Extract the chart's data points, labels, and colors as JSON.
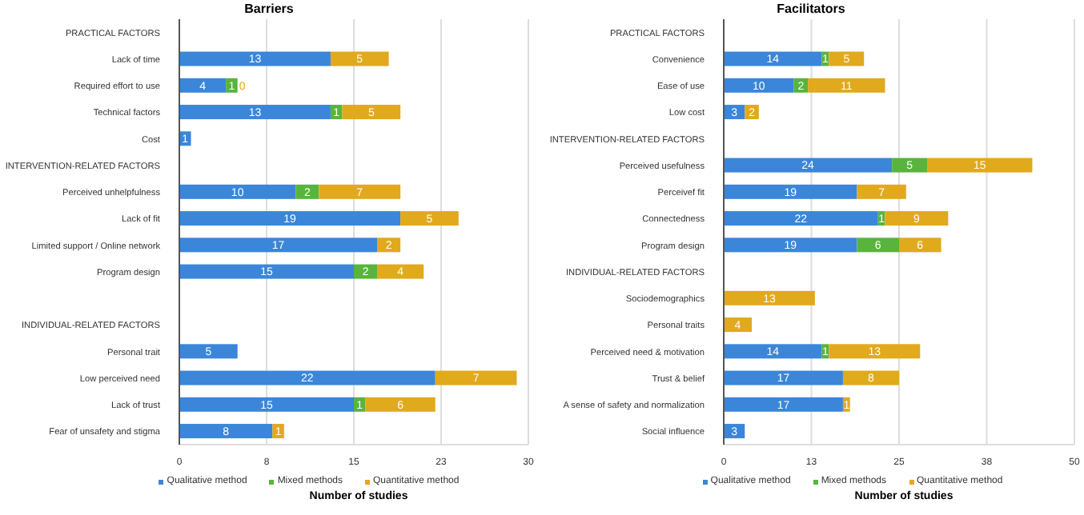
{
  "chart_data": [
    {
      "type": "bar",
      "orientation": "horizontal",
      "stacked": true,
      "title": "Barriers",
      "xlabel": "Number of studies",
      "categories": [
        "PRACTICAL FACTORS",
        "Lack of time",
        "Required effort to use",
        "Technical factors",
        "Cost",
        "INTERVENTION-RELATED FACTORS",
        "Perceived unhelpfulness",
        "Lack of fit",
        "Limited support / Online network",
        "Program design",
        null,
        "INDIVIDUAL-RELATED FACTORS",
        "Personal trait",
        "Low perceived need",
        "Lack of trust",
        "Fear of unsafety and stigma"
      ],
      "series": [
        {
          "name": "Qualitative method",
          "color": "#3b86d8",
          "values": [
            null,
            13,
            4,
            13,
            1,
            null,
            10,
            19,
            17,
            15,
            null,
            null,
            5,
            22,
            15,
            8
          ]
        },
        {
          "name": "Mixed methods",
          "color": "#58b43c",
          "values": [
            null,
            null,
            1,
            1,
            null,
            null,
            2,
            null,
            null,
            2,
            null,
            null,
            null,
            null,
            1,
            null
          ]
        },
        {
          "name": "Quantitative method",
          "color": "#e1a91c",
          "values": [
            null,
            5,
            0,
            5,
            null,
            null,
            7,
            5,
            2,
            4,
            null,
            null,
            null,
            7,
            6,
            1
          ]
        }
      ],
      "xlim": [
        0,
        30
      ],
      "xticks": [
        0,
        {
          "value": 7.5,
          "label": "8"
        },
        15,
        {
          "value": 22.5,
          "label": "23"
        },
        30
      ],
      "grid": "x",
      "legend": "bottom",
      "data_labels": true
    },
    {
      "type": "bar",
      "orientation": "horizontal",
      "stacked": true,
      "title": "Facilitators",
      "xlabel": "Number of studies",
      "categories": [
        "PRACTICAL FACTORS",
        "Convenience",
        "Ease of use",
        "Low cost",
        "INTERVENTION-RELATED FACTORS",
        "Perceived usefulness",
        "Perceivef fit",
        "Connectedness",
        "Program design",
        "INDIVIDUAL-RELATED FACTORS",
        "Sociodemographics",
        "Personal traits",
        "Perceived need & motivation",
        "Trust & belief",
        "A sense of safety and normalization",
        "Social influence"
      ],
      "series": [
        {
          "name": "Qualitative method",
          "color": "#3b86d8",
          "values": [
            null,
            14,
            10,
            3,
            null,
            24,
            19,
            22,
            19,
            null,
            null,
            null,
            14,
            17,
            17,
            3
          ]
        },
        {
          "name": "Mixed methods",
          "color": "#58b43c",
          "values": [
            null,
            1,
            2,
            null,
            null,
            5,
            null,
            1,
            6,
            null,
            null,
            null,
            1,
            null,
            null,
            null
          ]
        },
        {
          "name": "Quantitative method",
          "color": "#e1a91c",
          "values": [
            null,
            5,
            11,
            2,
            null,
            15,
            7,
            9,
            6,
            null,
            13,
            4,
            13,
            8,
            1,
            null
          ]
        }
      ],
      "xlim": [
        0,
        50
      ],
      "xticks": [
        0,
        {
          "value": 12.5,
          "label": "13"
        },
        25,
        {
          "value": 37.5,
          "label": "38"
        },
        50
      ],
      "grid": "x",
      "legend": "bottom",
      "data_labels": true
    }
  ]
}
